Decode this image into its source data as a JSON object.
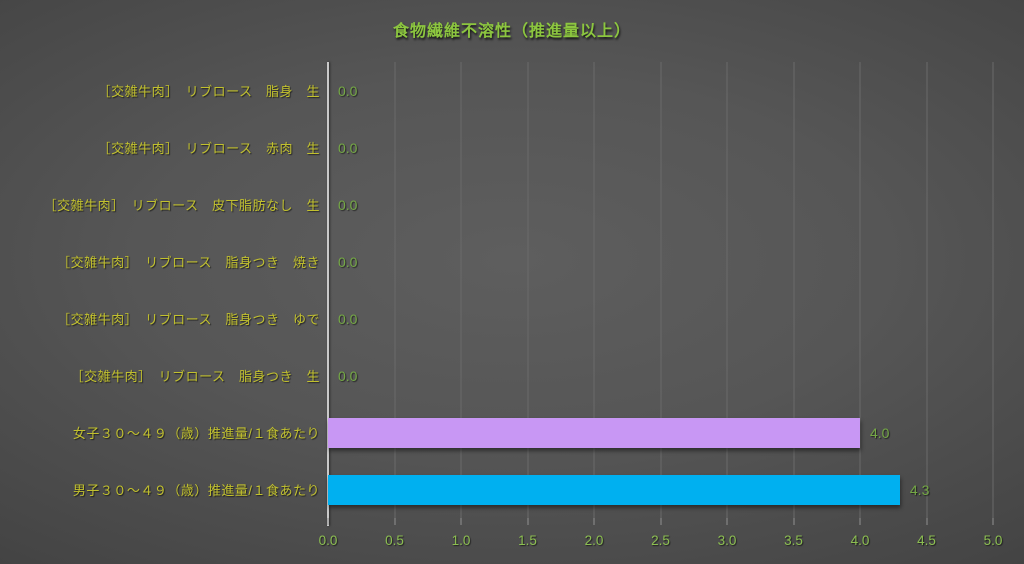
{
  "chart_data": {
    "type": "bar",
    "orientation": "horizontal",
    "title": "食物繊維不溶性（推進量以上）",
    "categories": [
      "［交雑牛肉］　リブロース　脂身　生",
      "［交雑牛肉］　リブロース　赤肉　生",
      "［交雑牛肉］　リブロース　皮下脂肪なし　生",
      "［交雑牛肉］　リブロース　脂身つき　焼き",
      "［交雑牛肉］　リブロース　脂身つき　ゆで",
      "［交雑牛肉］　リブロース　脂身つき　生",
      "女子３０～４９（歳）推進量/１食あたり",
      "男子３０～４９（歳）推進量/１食あたり"
    ],
    "values": [
      0.0,
      0.0,
      0.0,
      0.0,
      0.0,
      0.0,
      4.0,
      4.3
    ],
    "value_labels": [
      "0.0",
      "0.0",
      "0.0",
      "0.0",
      "0.0",
      "0.0",
      "4.0",
      "4.3"
    ],
    "bar_colors": [
      null,
      null,
      null,
      null,
      null,
      null,
      "#c897f4",
      "#00b0f0"
    ],
    "xlabel": "",
    "ylabel": "",
    "xlim": [
      0,
      5
    ],
    "gridline_interval": 0.5,
    "grid": true,
    "legend": false,
    "x_ticks": [
      "0.0",
      "0.5",
      "1.0",
      "1.5",
      "2.0",
      "2.5",
      "3.0",
      "3.5",
      "4.0",
      "4.5",
      "5.0"
    ]
  },
  "colors": {
    "title_text": "#8cc63f",
    "category_text": "#c2c12e",
    "value_text": "#74a845",
    "tick_text": "#8cbf51",
    "bar_female": "#c897f4",
    "bar_male": "#00b0f0",
    "gridline": "#6a6a6a",
    "axis_line": "#c9c9c9",
    "tick_mark": "#909090"
  }
}
